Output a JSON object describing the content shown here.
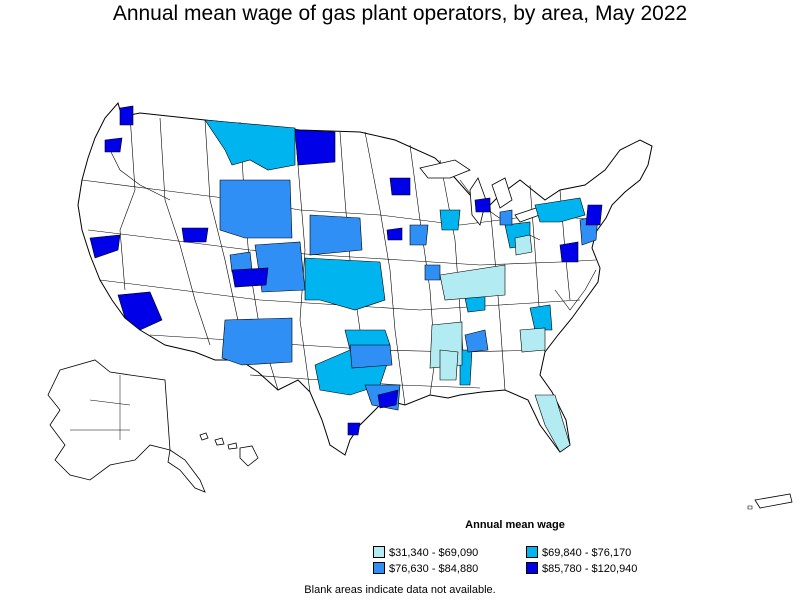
{
  "title": "Annual mean wage of gas plant operators, by area, May 2022",
  "legend": {
    "title": "Annual mean wage",
    "items": [
      {
        "label": "$31,340 - $69,090",
        "color": "#b2ebf2"
      },
      {
        "label": "$69,840 - $76,170",
        "color": "#00b4f0"
      },
      {
        "label": "$76,630 - $84,880",
        "color": "#2f8ff5"
      },
      {
        "label": "$85,780 - $120,940",
        "color": "#0000e8"
      }
    ]
  },
  "footnote": "Blank areas indicate data not available.",
  "colors": {
    "no_data": "#ffffff",
    "border": "#000000",
    "bin1": "#b2ebf2",
    "bin2": "#00b4f0",
    "bin3": "#2f8ff5",
    "bin4": "#0000e8"
  }
}
